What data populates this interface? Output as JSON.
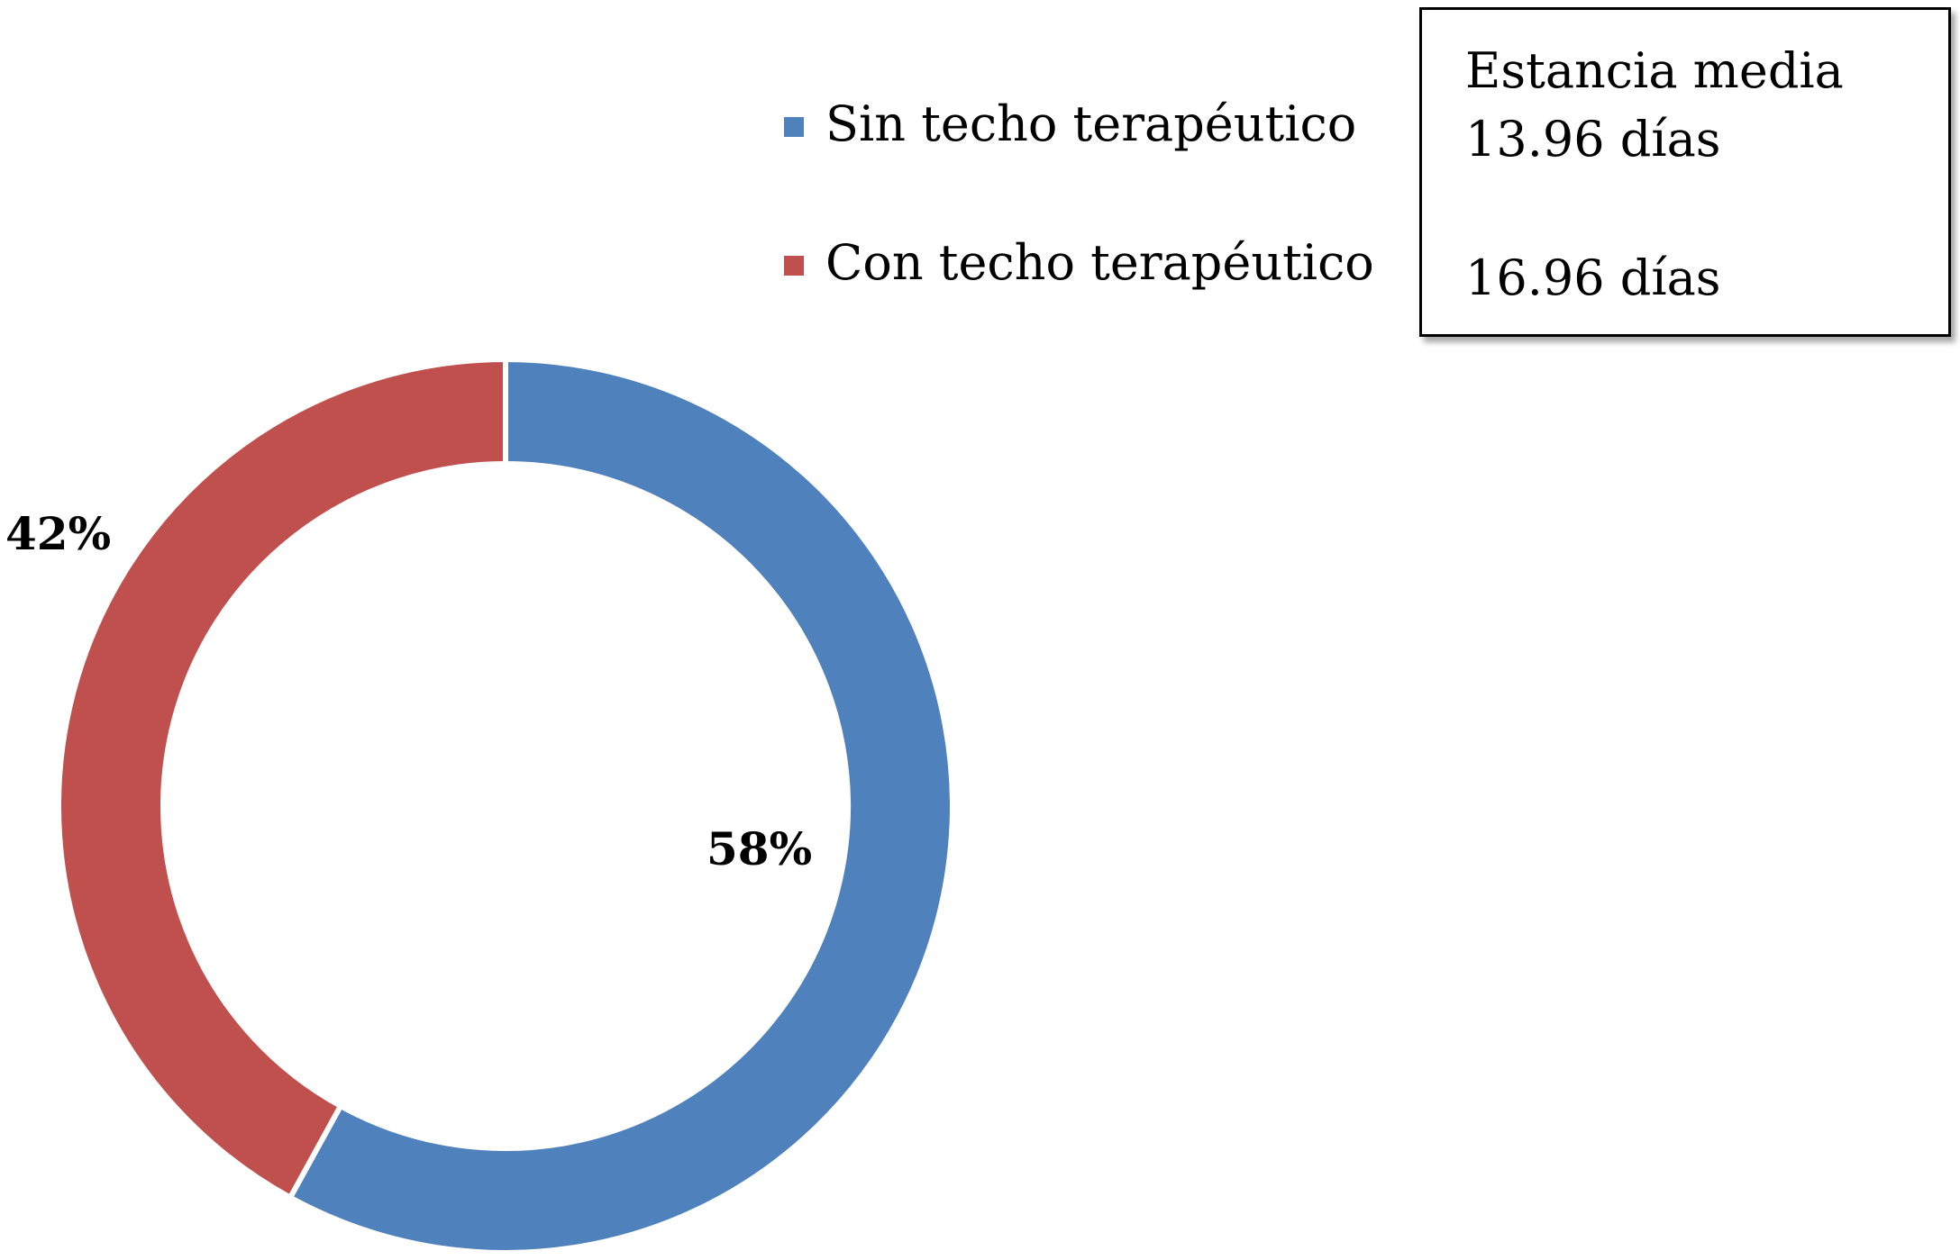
{
  "chart_data": {
    "type": "pie",
    "variant": "donut",
    "title": "",
    "slices": [
      {
        "label": "Sin techo terapéutico",
        "value": 58,
        "display": "58%",
        "color": "#4F81BD"
      },
      {
        "label": "Con techo terapéutico",
        "value": 42,
        "display": "42%",
        "color": "#C0504D"
      }
    ],
    "legend": {
      "placement": "top-center",
      "entries": [
        "Sin techo terapéutico",
        "Con techo terapéutico"
      ]
    },
    "annotation": {
      "title": "Estancia media",
      "values": [
        "13.96 días",
        "16.96 días"
      ]
    }
  }
}
